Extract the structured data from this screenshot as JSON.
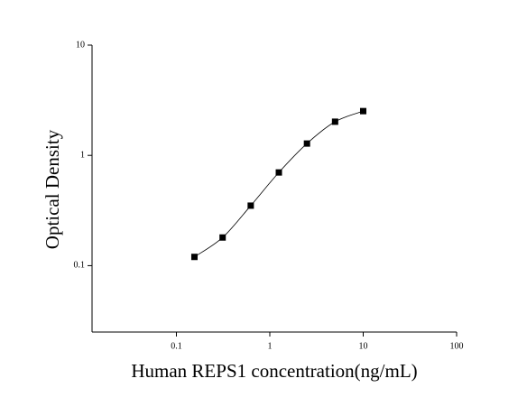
{
  "chart_data": {
    "type": "scatter",
    "x_label": "Human REPS1 concentration(ng/mL)",
    "y_label": "Optical Density",
    "x": [
      0.156,
      0.3125,
      0.625,
      1.25,
      2.5,
      5,
      10
    ],
    "series": [
      {
        "color": "#000000",
        "values": [
          0.12,
          0.18,
          0.35,
          0.7,
          1.28,
          2.02,
          2.52
        ]
      }
    ],
    "xlim": [
      0.0125,
      100
    ],
    "ylim": [
      0.025,
      10
    ],
    "xticks": [
      0.1,
      1,
      10,
      100
    ],
    "yticks": [
      0.1,
      1,
      10
    ],
    "xscale": "log",
    "yscale": "log",
    "fit_curve": true
  }
}
